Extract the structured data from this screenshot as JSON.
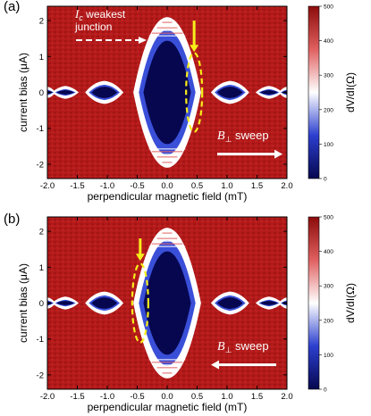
{
  "chart_data": [
    {
      "type": "heatmap",
      "panel_label": "(a)",
      "xlabel": "perpendicular magnetic field (mT)",
      "ylabel": "current bias (μA)",
      "xlim": [
        -2.0,
        2.0
      ],
      "ylim": [
        -2.4,
        2.4
      ],
      "xticks": [
        "-2.0",
        "-1.5",
        "-1.0",
        "-0.5",
        "0.0",
        "0.5",
        "1.0",
        "1.5",
        "2.0"
      ],
      "yticks": [
        "-2",
        "-1",
        "0",
        "1",
        "2"
      ],
      "colorbar": {
        "label": "dV/dI(Ω)",
        "range": [
          0,
          500
        ],
        "ticks": [
          "0",
          "100",
          "200",
          "300",
          "400",
          "500"
        ]
      },
      "lobes": [
        {
          "center_field_mT": 0.0,
          "half_width_mT": 0.55,
          "critical_current_uA": 2.0
        },
        {
          "center_field_mT": -1.05,
          "half_width_mT": 0.3,
          "critical_current_uA": 0.22
        },
        {
          "center_field_mT": 1.05,
          "half_width_mT": 0.3,
          "critical_current_uA": 0.22
        },
        {
          "center_field_mT": -1.7,
          "half_width_mT": 0.2,
          "critical_current_uA": 0.08
        },
        {
          "center_field_mT": 1.7,
          "half_width_mT": 0.2,
          "critical_current_uA": 0.08
        },
        {
          "center_field_mT": -2.0,
          "half_width_mT": 0.12,
          "critical_current_uA": 0.06
        },
        {
          "center_field_mT": 2.0,
          "half_width_mT": 0.12,
          "critical_current_uA": 0.06
        }
      ],
      "annotations": {
        "weakest_junction_prefix": "I",
        "weakest_junction_subscript": "c",
        "weakest_junction_suffix": " weakest",
        "weakest_junction_line2": "junction",
        "sweep_symbol": "B",
        "sweep_subscript": "⊥",
        "sweep_suffix": " sweep",
        "sweep_direction": "positive",
        "highlight_field_mT": 0.45
      }
    },
    {
      "type": "heatmap",
      "panel_label": "(b)",
      "xlabel": "perpendicular magnetic field (mT)",
      "ylabel": "current bias (μA)",
      "xlim": [
        -2.0,
        2.0
      ],
      "ylim": [
        -2.4,
        2.4
      ],
      "xticks": [
        "-2.0",
        "-1.5",
        "-1.0",
        "-0.5",
        "0.0",
        "0.5",
        "1.0",
        "1.5",
        "2.0"
      ],
      "yticks": [
        "-2",
        "-1",
        "0",
        "1",
        "2"
      ],
      "colorbar": {
        "label": "dV/dI(Ω)",
        "range": [
          0,
          500
        ],
        "ticks": [
          "0",
          "100",
          "200",
          "300",
          "400",
          "500"
        ]
      },
      "lobes": [
        {
          "center_field_mT": 0.0,
          "half_width_mT": 0.55,
          "critical_current_uA": 2.0
        },
        {
          "center_field_mT": -1.05,
          "half_width_mT": 0.3,
          "critical_current_uA": 0.22
        },
        {
          "center_field_mT": 1.05,
          "half_width_mT": 0.3,
          "critical_current_uA": 0.22
        },
        {
          "center_field_mT": -1.7,
          "half_width_mT": 0.2,
          "critical_current_uA": 0.08
        },
        {
          "center_field_mT": 1.7,
          "half_width_mT": 0.2,
          "critical_current_uA": 0.08
        },
        {
          "center_field_mT": -2.0,
          "half_width_mT": 0.12,
          "critical_current_uA": 0.06
        },
        {
          "center_field_mT": 2.0,
          "half_width_mT": 0.12,
          "critical_current_uA": 0.06
        }
      ],
      "annotations": {
        "sweep_symbol": "B",
        "sweep_subscript": "⊥",
        "sweep_suffix": " sweep",
        "sweep_direction": "negative",
        "highlight_field_mT": -0.45
      }
    }
  ],
  "colors": {
    "background_red": "#b31a1a",
    "superconducting": "#06074f",
    "edge_white": "#ffffff",
    "edge_blue": "#3a4fd8",
    "arrow_yellow": "#f7ee1a",
    "sweep_arrow": "#ffffff"
  }
}
